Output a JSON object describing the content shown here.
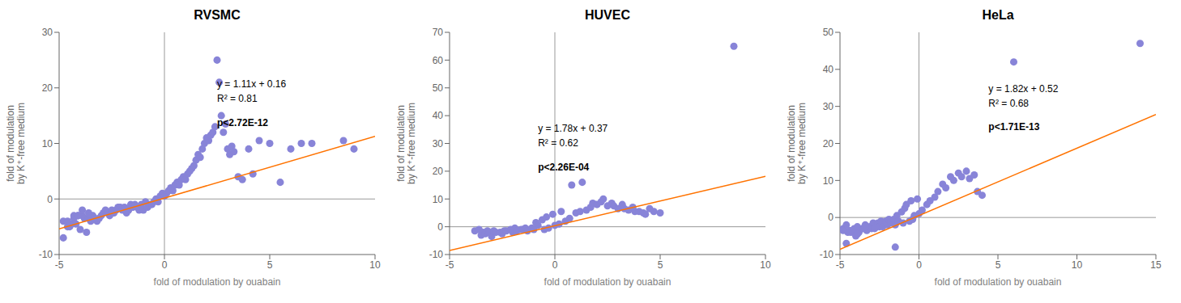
{
  "chart_data": [
    {
      "type": "scatter",
      "title": "RVSMC",
      "xlabel": "fold of modulation by ouabain",
      "ylabel": "fold of modulation\nby K⁺-free medium",
      "xlim": [
        -5,
        10
      ],
      "ylim": [
        -10,
        30
      ],
      "xticks": [
        -5,
        0,
        5,
        10
      ],
      "yticks": [
        -10,
        0,
        10,
        20,
        30
      ],
      "grid": false,
      "annotations": [
        "y = 1.11x + 0.16",
        "R² = 0.81",
        "p<2.72E-12"
      ],
      "series": [
        {
          "type": "scatter",
          "color": "#8884d8",
          "marker": "circle",
          "x": [
            -4.8,
            -4.6,
            -4.5,
            -4.4,
            -4.3,
            -4.2,
            -4.1,
            -4.0,
            -3.9,
            -3.8,
            -3.7,
            -3.6,
            -3.5,
            -3.5,
            -3.4,
            -3.3,
            -3.2,
            -3.1,
            -3.0,
            -2.9,
            -2.8,
            -2.7,
            -2.6,
            -2.5,
            -2.4,
            -2.3,
            -2.2,
            -2.1,
            -2.0,
            -1.9,
            -1.8,
            -1.7,
            -1.6,
            -1.5,
            -1.4,
            -1.3,
            -1.2,
            -1.1,
            -1.0,
            -0.9,
            -0.8,
            -0.7,
            -0.6,
            -0.5,
            -0.4,
            -0.3,
            -0.2,
            -0.1,
            0.0,
            0.1,
            0.2,
            0.3,
            0.4,
            0.5,
            0.6,
            0.7,
            0.8,
            0.9,
            1.0,
            1.1,
            1.2,
            1.3,
            1.4,
            1.5,
            1.6,
            1.7,
            1.8,
            1.9,
            2.0,
            2.1,
            2.2,
            2.3,
            2.4,
            2.5,
            2.6,
            2.7,
            2.8,
            2.9,
            3.0,
            3.1,
            3.2,
            3.3,
            3.5,
            3.7,
            4.0,
            4.2,
            4.5,
            5.0,
            5.5,
            6.0,
            6.5,
            7.0,
            8.5,
            9.0,
            -4.8,
            -4.6,
            -4.3,
            -4.1,
            -3.9,
            -3.6
          ],
          "values": [
            -4.0,
            -5.0,
            -5.0,
            -4.5,
            -3.5,
            -4.5,
            -3.0,
            -5.5,
            -3.0,
            -3.5,
            -6.0,
            -3.5,
            -3.0,
            -4.0,
            -3.0,
            -3.5,
            -4.0,
            -3.5,
            -3.0,
            -2.5,
            -2.0,
            -2.5,
            -3.0,
            -2.0,
            -2.5,
            -2.0,
            -1.5,
            -1.5,
            -2.0,
            -1.5,
            -2.5,
            -2.0,
            -1.0,
            -1.5,
            -1.0,
            -1.5,
            -2.0,
            -1.0,
            -2.0,
            -0.5,
            -1.5,
            -1.0,
            -1.0,
            -0.5,
            0.0,
            -0.5,
            0.5,
            1.0,
            0.5,
            1.0,
            1.5,
            2.0,
            1.5,
            2.5,
            3.0,
            2.5,
            3.5,
            4.0,
            3.5,
            4.5,
            5.0,
            5.5,
            6.0,
            7.0,
            8.0,
            7.5,
            9.0,
            10.0,
            11.0,
            10.5,
            11.5,
            12.0,
            13.0,
            25.0,
            21.0,
            15.0,
            12.0,
            13.5,
            9.0,
            8.0,
            9.5,
            8.5,
            4.0,
            3.5,
            9.0,
            4.5,
            10.5,
            10.0,
            3.0,
            9.0,
            10.0,
            10.0,
            10.5,
            9.0,
            -7.0,
            -4.0,
            -3.0,
            -3.0,
            -2.0,
            -2.5
          ]
        },
        {
          "type": "line",
          "color": "#ff7300",
          "line_style": "solid",
          "x": [
            -5,
            10
          ],
          "values": [
            -5.39,
            11.26
          ]
        }
      ]
    },
    {
      "type": "scatter",
      "title": "HUVEC",
      "xlabel": "fold of modulation by ouabain",
      "ylabel": "fold of modulation\nby K⁺-free medium",
      "xlim": [
        -5,
        10
      ],
      "ylim": [
        -10,
        70
      ],
      "xticks": [
        -5,
        0,
        5,
        10
      ],
      "yticks": [
        -10,
        0,
        10,
        20,
        30,
        40,
        50,
        60,
        70
      ],
      "grid": false,
      "annotations": [
        "y = 1.78x + 0.37",
        "R² = 0.62",
        "p<2.26E-04"
      ],
      "series": [
        {
          "type": "scatter",
          "color": "#8884d8",
          "marker": "circle",
          "x": [
            -3.8,
            -3.6,
            -3.5,
            -3.4,
            -3.3,
            -3.2,
            -3.1,
            -3.0,
            -2.9,
            -2.8,
            -2.6,
            -2.5,
            -2.4,
            -2.3,
            -2.1,
            -2.0,
            -1.9,
            -1.8,
            -1.6,
            -1.5,
            -1.4,
            -1.3,
            -1.1,
            -1.0,
            -0.9,
            -0.8,
            -0.6,
            -0.5,
            -0.4,
            -0.3,
            -0.1,
            0.0,
            0.2,
            0.3,
            0.5,
            0.7,
            0.8,
            1.0,
            1.2,
            1.3,
            1.5,
            1.7,
            1.8,
            2.0,
            2.2,
            2.3,
            2.5,
            2.7,
            2.8,
            3.0,
            3.2,
            3.3,
            3.5,
            3.7,
            3.8,
            4.0,
            4.2,
            4.3,
            4.5,
            4.7,
            5.0,
            8.5
          ],
          "values": [
            -1.5,
            -1.0,
            -3.0,
            -2.0,
            -2.5,
            -1.5,
            -2.0,
            -3.5,
            -1.5,
            -2.0,
            -2.0,
            -2.5,
            -1.5,
            -1.5,
            -1.0,
            -2.0,
            -0.5,
            -1.5,
            -1.0,
            -1.0,
            -0.5,
            -1.5,
            -0.5,
            -1.0,
            1.5,
            0.5,
            2.5,
            -1.0,
            3.5,
            -0.5,
            4.5,
            0.5,
            1.0,
            5.5,
            2.0,
            3.0,
            15.0,
            5.0,
            5.5,
            16.0,
            6.0,
            7.0,
            8.5,
            8.0,
            9.0,
            10.0,
            7.5,
            8.5,
            7.5,
            6.5,
            8.0,
            6.5,
            6.0,
            7.0,
            5.5,
            5.5,
            5.0,
            4.5,
            6.5,
            5.5,
            5.0,
            65.0
          ]
        },
        {
          "type": "line",
          "color": "#ff7300",
          "line_style": "solid",
          "x": [
            -5,
            10
          ],
          "values": [
            -8.53,
            18.17
          ]
        }
      ]
    },
    {
      "type": "scatter",
      "title": "HeLa",
      "xlabel": "fold of modulation by ouabain",
      "ylabel": "fold of modulation\nby K⁺-free medium",
      "xlim": [
        -5,
        15
      ],
      "ylim": [
        -10,
        50
      ],
      "xticks": [
        -5,
        0,
        5,
        10,
        15
      ],
      "yticks": [
        -10,
        0,
        10,
        20,
        30,
        40,
        50
      ],
      "grid": false,
      "annotations": [
        "y = 1.82x + 0.52",
        "R² = 0.68",
        "p<1.71E-13"
      ],
      "series": [
        {
          "type": "scatter",
          "color": "#8884d8",
          "marker": "circle",
          "x": [
            -4.8,
            -4.6,
            -4.5,
            -4.4,
            -4.3,
            -4.2,
            -4.1,
            -4.0,
            -3.9,
            -3.8,
            -3.6,
            -3.5,
            -3.4,
            -3.3,
            -3.1,
            -3.0,
            -2.9,
            -2.8,
            -2.6,
            -2.5,
            -2.4,
            -2.3,
            -2.1,
            -2.0,
            -1.9,
            -1.8,
            -1.6,
            -1.5,
            -1.4,
            -1.3,
            -1.1,
            -1.0,
            -0.9,
            -0.8,
            -0.6,
            -0.5,
            -0.4,
            -0.3,
            -0.1,
            0.0,
            0.2,
            0.5,
            0.7,
            1.0,
            1.2,
            1.5,
            1.7,
            2.0,
            2.2,
            2.5,
            2.7,
            3.0,
            3.2,
            3.5,
            3.7,
            4.0,
            6.0,
            14.0,
            -4.8,
            -4.6,
            -3.9,
            -3.4,
            -1.5
          ],
          "values": [
            -3.0,
            -2.0,
            -4.0,
            -3.5,
            -4.0,
            -3.5,
            -3.0,
            -5.0,
            -2.5,
            -4.0,
            -3.0,
            -3.0,
            -2.0,
            -3.5,
            -2.5,
            -3.0,
            -1.5,
            -3.0,
            -1.5,
            -2.5,
            -1.0,
            -2.5,
            -1.0,
            -2.0,
            -0.5,
            -1.5,
            -0.5,
            -2.0,
            0.5,
            -1.0,
            1.5,
            -1.5,
            2.5,
            3.5,
            -1.0,
            4.5,
            -0.5,
            0.5,
            5.0,
            1.0,
            2.0,
            3.5,
            4.5,
            5.5,
            7.0,
            9.0,
            8.0,
            11.0,
            10.0,
            12.0,
            11.0,
            12.5,
            10.5,
            11.5,
            7.0,
            6.0,
            42.0,
            47.0,
            -3.5,
            -7.0,
            -4.5,
            -2.5,
            -8.0
          ]
        },
        {
          "type": "line",
          "color": "#ff7300",
          "line_style": "solid",
          "x": [
            -5,
            15
          ],
          "values": [
            -8.58,
            27.82
          ]
        }
      ]
    }
  ]
}
